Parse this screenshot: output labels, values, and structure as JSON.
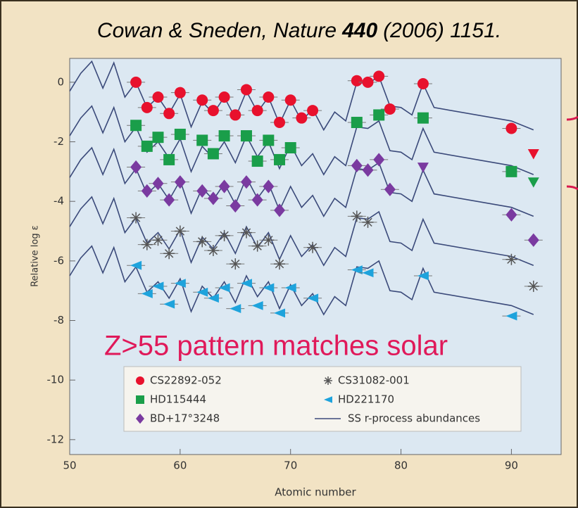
{
  "chart_data": {
    "type": "scatter",
    "title_parts": [
      "Cowan & Sneden, Nature",
      "440",
      "(2006) 1151."
    ],
    "x_label": "Atomic number",
    "y_label": "Relative log ε",
    "annotation": "Z>55 pattern matches solar",
    "xlim": [
      50,
      94.5
    ],
    "ylim": [
      -12.5,
      0.8
    ],
    "xticks": [
      50,
      60,
      70,
      80,
      90
    ],
    "yticks": [
      0,
      -2,
      -4,
      -6,
      -8,
      -10,
      -12
    ],
    "series": [
      {
        "name": "CS22892-052",
        "color": "#e8112d",
        "marker": "circle",
        "x": [
          56,
          57,
          58,
          59,
          60,
          62,
          63,
          64,
          65,
          66,
          67,
          68,
          69,
          70,
          71,
          72,
          76,
          77,
          78,
          79,
          82,
          90,
          92
        ],
        "values": [
          0,
          -0.85,
          -0.5,
          -1.05,
          -0.35,
          -0.6,
          -0.95,
          -0.5,
          -1.1,
          -0.25,
          -0.95,
          -0.5,
          -1.35,
          -0.6,
          -1.2,
          -0.95,
          0.05,
          0,
          0.2,
          -0.9,
          -0.05,
          -1.55,
          -2.4
        ],
        "upper_limit_x": [
          92
        ]
      },
      {
        "name": "HD115444",
        "color": "#1a9e4a",
        "marker": "square",
        "x": [
          56,
          57,
          58,
          59,
          60,
          62,
          63,
          64,
          66,
          67,
          68,
          69,
          70,
          76,
          78,
          82,
          90,
          92
        ],
        "values": [
          -1.45,
          -2.15,
          -1.85,
          -2.6,
          -1.75,
          -1.95,
          -2.4,
          -1.8,
          -1.8,
          -2.65,
          -1.95,
          -2.6,
          -2.2,
          -1.35,
          -1.1,
          -1.2,
          -3.0,
          -3.35
        ],
        "upper_limit_x": [
          92
        ]
      },
      {
        "name": "BD+17°3248",
        "color": "#7a3aa0",
        "marker": "diamond",
        "x": [
          56,
          57,
          58,
          59,
          60,
          62,
          63,
          64,
          65,
          66,
          67,
          68,
          69,
          76,
          77,
          78,
          79,
          82,
          90,
          92
        ],
        "values": [
          -2.85,
          -3.65,
          -3.4,
          -3.95,
          -3.35,
          -3.65,
          -3.9,
          -3.5,
          -4.15,
          -3.35,
          -3.95,
          -3.5,
          -4.3,
          -2.8,
          -2.95,
          -2.6,
          -3.6,
          -2.85,
          -4.45,
          -5.3
        ],
        "upper_limit_x": [
          82
        ]
      },
      {
        "name": "CS31082-001",
        "color": "#555555",
        "marker": "asterisk",
        "x": [
          56,
          57,
          58,
          59,
          60,
          62,
          63,
          64,
          65,
          66,
          67,
          68,
          69,
          72,
          76,
          77,
          90,
          92
        ],
        "values": [
          -4.55,
          -5.45,
          -5.3,
          -5.75,
          -5.0,
          -5.35,
          -5.65,
          -5.15,
          -6.1,
          -5.05,
          -5.5,
          -5.3,
          -6.1,
          -5.55,
          -4.5,
          -4.7,
          -5.95,
          -6.85
        ]
      },
      {
        "name": "HD221170",
        "color": "#1ea3dc",
        "marker": "triangle-left",
        "x": [
          56,
          57,
          58,
          59,
          60,
          62,
          63,
          64,
          65,
          66,
          67,
          68,
          69,
          70,
          72,
          76,
          77,
          82,
          90
        ],
        "values": [
          -6.15,
          -7.1,
          -6.85,
          -7.45,
          -6.75,
          -7.05,
          -7.25,
          -6.9,
          -7.6,
          -6.75,
          -7.5,
          -6.9,
          -7.75,
          -6.9,
          -7.25,
          -6.3,
          -6.4,
          -6.5,
          -7.85
        ]
      }
    ],
    "solar": {
      "name": "SS r-process abundances",
      "color": "#3b4a7a",
      "x": [
        50,
        51,
        52,
        53,
        54,
        55,
        56,
        57,
        58,
        59,
        60,
        61,
        62,
        63,
        64,
        65,
        66,
        67,
        68,
        69,
        70,
        71,
        72,
        73,
        74,
        75,
        76,
        77,
        78,
        79,
        80,
        81,
        82,
        83,
        90,
        92
      ],
      "curves": [
        [
          -0.3,
          0.3,
          0.7,
          -0.2,
          0.65,
          -0.5,
          0.0,
          -0.85,
          -0.5,
          -1.05,
          -0.4,
          -1.5,
          -0.65,
          -1.05,
          -0.5,
          -1.2,
          -0.3,
          -1.0,
          -0.5,
          -1.4,
          -0.6,
          -1.3,
          -0.9,
          -1.6,
          -1.0,
          -1.3,
          0.0,
          -0.05,
          0.2,
          -0.8,
          -0.85,
          -1.1,
          -0.05,
          -0.85,
          -1.3,
          -1.6
        ],
        [
          -1.8,
          -1.2,
          -0.8,
          -1.7,
          -0.85,
          -2.0,
          -1.5,
          -2.35,
          -2.0,
          -2.55,
          -1.9,
          -3.0,
          -2.15,
          -2.55,
          -2.0,
          -2.7,
          -1.8,
          -2.5,
          -2.0,
          -2.9,
          -2.1,
          -2.8,
          -2.4,
          -3.1,
          -2.5,
          -2.8,
          -1.5,
          -1.55,
          -1.3,
          -2.3,
          -2.35,
          -2.6,
          -1.55,
          -2.35,
          -2.8,
          -3.1
        ],
        [
          -3.2,
          -2.6,
          -2.2,
          -3.1,
          -2.25,
          -3.4,
          -2.9,
          -3.75,
          -3.4,
          -3.95,
          -3.3,
          -4.4,
          -3.55,
          -3.95,
          -3.4,
          -4.1,
          -3.2,
          -3.9,
          -3.4,
          -4.3,
          -3.5,
          -4.2,
          -3.8,
          -4.5,
          -3.9,
          -4.2,
          -2.9,
          -2.95,
          -2.7,
          -3.7,
          -3.75,
          -4.0,
          -2.95,
          -3.75,
          -4.2,
          -4.5
        ],
        [
          -4.85,
          -4.25,
          -3.85,
          -4.75,
          -3.9,
          -5.05,
          -4.55,
          -5.4,
          -5.05,
          -5.6,
          -4.95,
          -6.05,
          -5.2,
          -5.6,
          -5.05,
          -5.75,
          -4.85,
          -5.55,
          -5.05,
          -5.95,
          -5.15,
          -5.85,
          -5.45,
          -6.15,
          -5.55,
          -5.85,
          -4.55,
          -4.6,
          -4.35,
          -5.35,
          -5.4,
          -5.65,
          -4.6,
          -5.4,
          -5.85,
          -6.15
        ],
        [
          -6.5,
          -5.9,
          -5.5,
          -6.4,
          -5.55,
          -6.7,
          -6.2,
          -7.05,
          -6.7,
          -7.25,
          -6.6,
          -7.7,
          -6.85,
          -7.25,
          -6.7,
          -7.4,
          -6.5,
          -7.2,
          -6.7,
          -7.6,
          -6.8,
          -7.5,
          -7.1,
          -7.8,
          -7.2,
          -7.5,
          -6.2,
          -6.25,
          -6.0,
          -7.0,
          -7.05,
          -7.3,
          -6.25,
          -7.05,
          -7.5,
          -7.8
        ]
      ]
    }
  }
}
